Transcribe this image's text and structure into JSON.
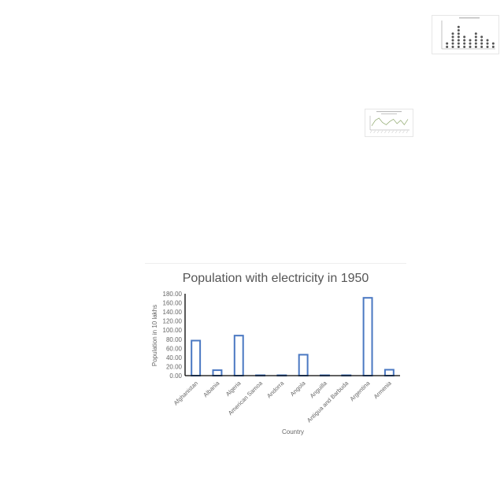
{
  "thumbnails": [
    {
      "kind": "dot-plot",
      "columns": [
        2,
        5,
        7,
        4,
        3,
        5,
        4,
        3,
        2
      ]
    },
    {
      "kind": "line",
      "values": [
        3,
        8,
        10,
        6,
        4,
        7,
        9,
        5,
        8,
        4,
        9
      ]
    }
  ],
  "chart_data": {
    "type": "bar",
    "title": "Population with electricity in 1950",
    "xlabel": "Country",
    "ylabel": "Population in 10 lakhs",
    "ylim": [
      0,
      180
    ],
    "yticks": [
      "0.00",
      "20.00",
      "40.00",
      "60.00",
      "80.00",
      "100.00",
      "120.00",
      "140.00",
      "160.00",
      "180.00"
    ],
    "categories": [
      "Afghanistan",
      "Albania",
      "Algeria",
      "American Samoa",
      "Andorra",
      "Angola",
      "Anguilla",
      "Antigua and Barbuda",
      "Argentina",
      "Armenia"
    ],
    "values": [
      77,
      12,
      88,
      0,
      0,
      46,
      0,
      0,
      171,
      13
    ],
    "grid": false,
    "legend": "none",
    "bar_style": "outline",
    "bar_color": "#4a78c2"
  }
}
